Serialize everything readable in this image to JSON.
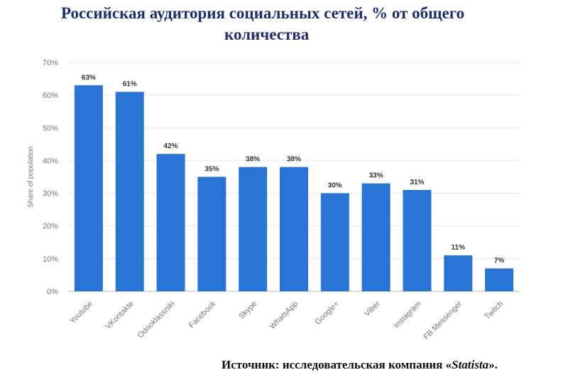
{
  "page": {
    "title_line1": "Российская аудитория социальных сетей, % от общего",
    "title_line2": "количества",
    "source_prefix": "Источник: исследовательская компания «",
    "source_name": "Statista",
    "source_suffix": "»."
  },
  "chart_data": {
    "type": "bar",
    "ylabel": "Share of population",
    "ylim": [
      0,
      70
    ],
    "yticks": [
      0,
      10,
      20,
      30,
      40,
      50,
      60,
      70
    ],
    "ytick_format": "%",
    "grid": true,
    "bar_color": "#2a74d6",
    "categories": [
      "Youtube",
      "VKontakte",
      "Odnoklassniki",
      "Facebook",
      "Skype",
      "WhatsApp",
      "Google+",
      "Viber",
      "Instagram",
      "FB Messenger",
      "Twitch"
    ],
    "values": [
      63,
      61,
      42,
      35,
      38,
      38,
      30,
      33,
      31,
      11,
      7
    ],
    "data_labels": [
      "63%",
      "61%",
      "42%",
      "35%",
      "38%",
      "38%",
      "30%",
      "33%",
      "31%",
      "11%",
      "7%"
    ]
  }
}
